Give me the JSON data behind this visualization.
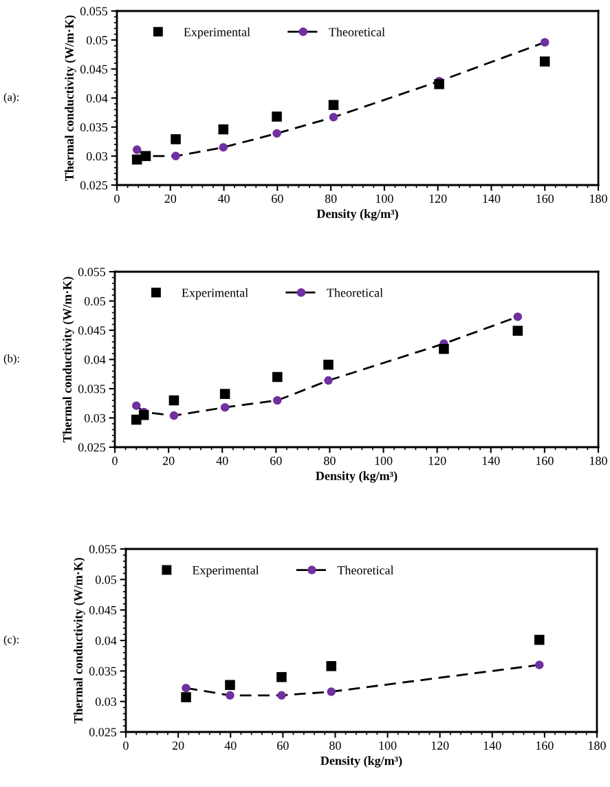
{
  "chart_data": [
    {
      "type": "line",
      "xlabel": "Density (kg/m³)",
      "ylabel": "Thermal conductivity (W/m·K)",
      "annotations": [
        "(a):"
      ],
      "xlim": [
        0,
        180
      ],
      "xticks": [
        0,
        20,
        40,
        60,
        80,
        100,
        120,
        140,
        160,
        180
      ],
      "ylim": [
        0.025,
        0.055
      ],
      "yticks": [
        0.025,
        0.03,
        0.035,
        0.04,
        0.045,
        0.05,
        0.055
      ],
      "grid": false,
      "legend": "top left",
      "series": [
        {
          "name": "Experimental",
          "type": "scatter",
          "marker": "square",
          "color": "#000000",
          "x": [
            7.5,
            10.8,
            22,
            39.8,
            59.8,
            81,
            120.5,
            160
          ],
          "values": [
            0.0294,
            0.03,
            0.0329,
            0.0346,
            0.0368,
            0.0388,
            0.0424,
            0.0463
          ]
        },
        {
          "name": "Theoretical",
          "marker": "circle",
          "line_style": "dashed",
          "color": "#7030a0",
          "x": [
            7.5,
            10.8,
            22,
            39.8,
            59.8,
            81,
            120.5,
            160
          ],
          "values": [
            0.0311,
            0.03,
            0.03,
            0.0315,
            0.0339,
            0.0367,
            0.0429,
            0.0496
          ]
        }
      ]
    },
    {
      "type": "line",
      "xlabel": "Density (kg/m³)",
      "ylabel": "Thermal conductivity (W/m·K)",
      "annotations": [
        "(b):"
      ],
      "xlim": [
        0,
        180
      ],
      "xticks": [
        0,
        20,
        40,
        60,
        80,
        100,
        120,
        140,
        160,
        180
      ],
      "ylim": [
        0.025,
        0.055
      ],
      "yticks": [
        0.025,
        0.03,
        0.035,
        0.04,
        0.045,
        0.05,
        0.055
      ],
      "grid": false,
      "legend": "top left",
      "series": [
        {
          "name": "Experimental",
          "type": "scatter",
          "marker": "square",
          "color": "#000000",
          "x": [
            8,
            10.8,
            22,
            41,
            60.5,
            79.5,
            122.5,
            150
          ],
          "values": [
            0.0297,
            0.0305,
            0.033,
            0.0341,
            0.037,
            0.0391,
            0.0418,
            0.0449
          ]
        },
        {
          "name": "Theoretical",
          "marker": "circle",
          "line_style": "dashed",
          "color": "#7030a0",
          "x": [
            8,
            10.8,
            22,
            41,
            60.5,
            79.5,
            122.5,
            150
          ],
          "values": [
            0.0321,
            0.031,
            0.0304,
            0.0318,
            0.033,
            0.0364,
            0.0427,
            0.0473
          ]
        }
      ]
    },
    {
      "type": "line",
      "xlabel": "Density (kg/m³)",
      "ylabel": "Thermal conductivity (W/m·K)",
      "annotations": [
        "(c):"
      ],
      "xlim": [
        0,
        180
      ],
      "xticks": [
        0,
        20,
        40,
        60,
        80,
        100,
        120,
        140,
        160,
        180
      ],
      "ylim": [
        0.025,
        0.055
      ],
      "yticks": [
        0.025,
        0.03,
        0.035,
        0.04,
        0.045,
        0.05,
        0.055
      ],
      "grid": false,
      "legend": "top left",
      "series": [
        {
          "name": "Experimental",
          "type": "scatter",
          "marker": "square",
          "color": "#000000",
          "x": [
            23,
            39.8,
            59.5,
            78.5,
            158
          ],
          "values": [
            0.0307,
            0.0327,
            0.034,
            0.0358,
            0.0401
          ]
        },
        {
          "name": "Theoretical",
          "marker": "circle",
          "line_style": "dashed",
          "color": "#7030a0",
          "x": [
            23,
            39.8,
            59.5,
            78.5,
            158
          ],
          "values": [
            0.0322,
            0.031,
            0.031,
            0.0316,
            0.036
          ]
        }
      ]
    }
  ]
}
